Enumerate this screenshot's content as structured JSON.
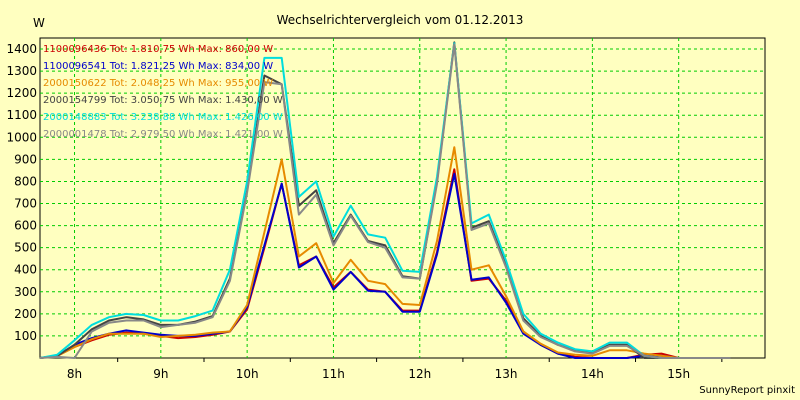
{
  "chart_data": {
    "type": "line",
    "title": "Wechselrichtervergleich vom 01.12.2013",
    "ylabel": "W",
    "xlabel": "",
    "x_hours": [
      7.6,
      7.8,
      8.0,
      8.2,
      8.4,
      8.6,
      8.8,
      9.0,
      9.2,
      9.4,
      9.6,
      9.8,
      10.0,
      10.2,
      10.4,
      10.6,
      10.8,
      11.0,
      11.2,
      11.4,
      11.6,
      11.8,
      12.0,
      12.2,
      12.4,
      12.6,
      12.8,
      13.0,
      13.2,
      13.4,
      13.6,
      13.8,
      14.0,
      14.2,
      14.4,
      14.6,
      14.8,
      15.0,
      15.2,
      15.4,
      15.6
    ],
    "x_ticks": [
      {
        "label": "8h",
        "value": 8
      },
      {
        "label": "9h",
        "value": 9
      },
      {
        "label": "10h",
        "value": 10
      },
      {
        "label": "11h",
        "value": 11
      },
      {
        "label": "12h",
        "value": 12
      },
      {
        "label": "13h",
        "value": 13
      },
      {
        "label": "14h",
        "value": 14
      },
      {
        "label": "15h",
        "value": 15
      }
    ],
    "xlim": [
      7.6,
      16.0
    ],
    "ylim": [
      0,
      1450
    ],
    "y_ticks": [
      "100",
      "200",
      "300",
      "400",
      "500",
      "600",
      "700",
      "800",
      "900",
      "1000",
      "1100",
      "1200",
      "1300",
      "1400"
    ],
    "grid": true,
    "series": [
      {
        "name": "1100096436 Tot: 1.810,75 Wh Max: 860,00 W",
        "color": "#cc0000",
        "values": [
          0,
          10,
          50,
          80,
          105,
          115,
          110,
          100,
          90,
          95,
          105,
          120,
          220,
          500,
          790,
          420,
          460,
          320,
          390,
          310,
          300,
          215,
          215,
          480,
          855,
          350,
          360,
          260,
          120,
          60,
          20,
          5,
          0,
          0,
          0,
          15,
          20,
          0,
          0,
          0,
          0
        ]
      },
      {
        "name": "1100096541 Tot: 1.821,25 Wh Max: 834,00 W",
        "color": "#0000cc",
        "values": [
          0,
          10,
          60,
          90,
          110,
          125,
          115,
          105,
          100,
          100,
          110,
          120,
          230,
          510,
          790,
          410,
          460,
          310,
          390,
          305,
          300,
          210,
          210,
          470,
          834,
          355,
          365,
          250,
          110,
          60,
          20,
          0,
          0,
          0,
          0,
          10,
          10,
          0,
          0,
          0,
          0
        ]
      },
      {
        "name": "2000150622 Tot: 2.048,25 Wh Max: 955,00 W",
        "color": "#e68a00",
        "values": [
          0,
          10,
          50,
          85,
          110,
          110,
          110,
          95,
          100,
          105,
          115,
          120,
          240,
          570,
          900,
          460,
          520,
          340,
          445,
          350,
          335,
          245,
          240,
          530,
          955,
          400,
          420,
          280,
          120,
          65,
          25,
          15,
          10,
          35,
          35,
          20,
          10,
          0,
          0,
          0,
          0
        ]
      },
      {
        "name": "2000154799 Tot: 3.050,75 Wh Max: 1.430,00 W",
        "color": "#444444",
        "values": [
          0,
          10,
          60,
          130,
          170,
          185,
          175,
          150,
          150,
          165,
          190,
          360,
          760,
          1280,
          1240,
          690,
          760,
          520,
          650,
          530,
          510,
          370,
          360,
          800,
          1430,
          590,
          620,
          420,
          180,
          100,
          60,
          35,
          25,
          60,
          60,
          0,
          0,
          0,
          0,
          0,
          0
        ]
      },
      {
        "name": "2000148883 Tot: 3.238,88 Wh Max: 1.426,00 W",
        "color": "#00dddd",
        "values": [
          0,
          15,
          80,
          150,
          185,
          200,
          195,
          170,
          170,
          190,
          215,
          400,
          800,
          1360,
          1360,
          730,
          800,
          550,
          690,
          560,
          545,
          395,
          390,
          820,
          1426,
          610,
          650,
          440,
          200,
          110,
          70,
          40,
          30,
          70,
          70,
          10,
          0,
          0,
          0,
          0,
          0
        ]
      },
      {
        "name": "2000001478 Tot: 2.979,50 Wh Max: 1.421,00 W",
        "color": "#888888",
        "values": [
          0,
          5,
          0,
          120,
          160,
          170,
          170,
          140,
          150,
          160,
          185,
          350,
          750,
          1250,
          1240,
          650,
          740,
          510,
          645,
          525,
          500,
          365,
          360,
          790,
          1421,
          580,
          610,
          410,
          170,
          95,
          60,
          30,
          20,
          55,
          55,
          10,
          0,
          0,
          0,
          0,
          0
        ]
      }
    ]
  },
  "footer": "SunnyReport pinxit"
}
